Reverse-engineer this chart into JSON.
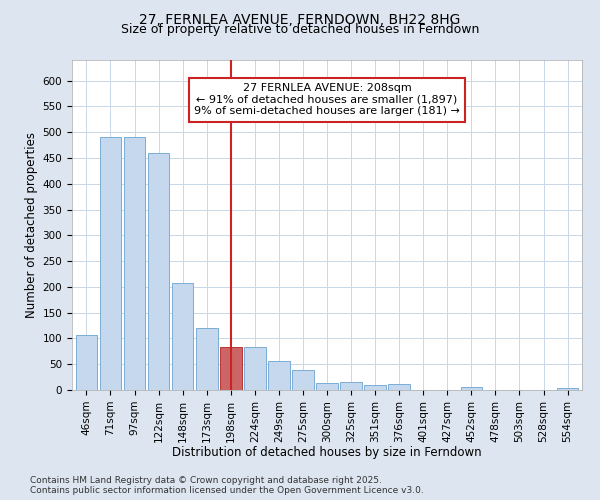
{
  "title": "27, FERNLEA AVENUE, FERNDOWN, BH22 8HG",
  "subtitle": "Size of property relative to detached houses in Ferndown",
  "xlabel": "Distribution of detached houses by size in Ferndown",
  "ylabel": "Number of detached properties",
  "categories": [
    "46sqm",
    "71sqm",
    "97sqm",
    "122sqm",
    "148sqm",
    "173sqm",
    "198sqm",
    "224sqm",
    "249sqm",
    "275sqm",
    "300sqm",
    "325sqm",
    "351sqm",
    "376sqm",
    "401sqm",
    "427sqm",
    "452sqm",
    "478sqm",
    "503sqm",
    "528sqm",
    "554sqm"
  ],
  "values": [
    106,
    490,
    490,
    460,
    208,
    120,
    83,
    83,
    57,
    39,
    14,
    15,
    9,
    11,
    0,
    0,
    5,
    0,
    0,
    0,
    4
  ],
  "bar_color": "#c5d8ee",
  "bar_edge_color": "#7aadd4",
  "highlight_bar_index": 6,
  "highlight_bar_color": "#cc6666",
  "highlight_bar_edge_color": "#bb3333",
  "vline_x": 6,
  "vline_color": "#cc2222",
  "annotation_text": "27 FERNLEA AVENUE: 208sqm\n← 91% of detached houses are smaller (1,897)\n9% of semi-detached houses are larger (181) →",
  "annotation_box_color": "#ffffff",
  "annotation_box_edge_color": "#cc2222",
  "ylim": [
    0,
    640
  ],
  "yticks": [
    0,
    50,
    100,
    150,
    200,
    250,
    300,
    350,
    400,
    450,
    500,
    550,
    600
  ],
  "footer_text": "Contains HM Land Registry data © Crown copyright and database right 2025.\nContains public sector information licensed under the Open Government Licence v3.0.",
  "fig_bg_color": "#dde6f0",
  "plot_bg_color": "#ffffff",
  "title_fontsize": 10,
  "subtitle_fontsize": 9,
  "axis_label_fontsize": 8.5,
  "tick_fontsize": 7.5,
  "annotation_fontsize": 8,
  "footer_fontsize": 6.5
}
